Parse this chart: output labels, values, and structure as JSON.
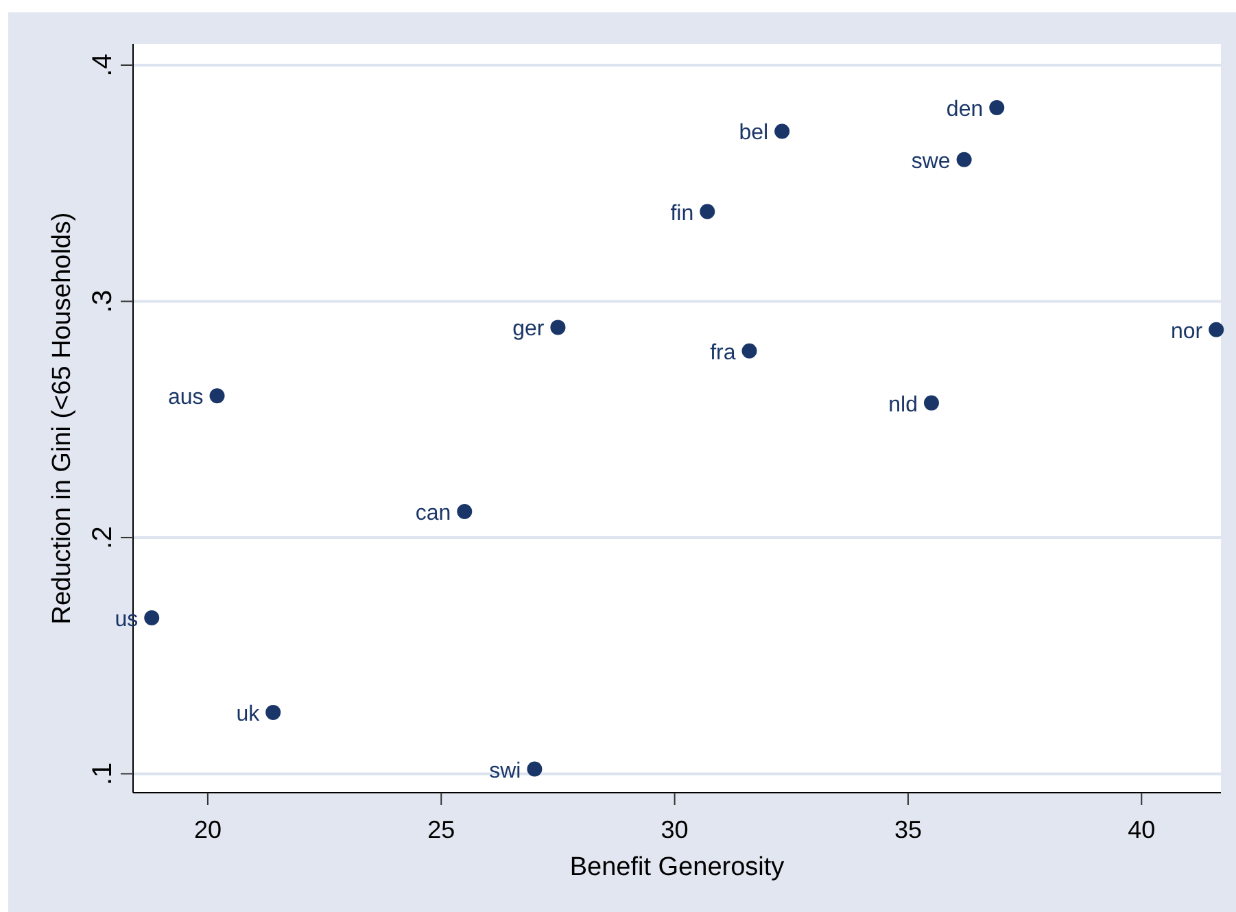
{
  "chart_data": {
    "type": "scatter",
    "xlabel": "Benefit Generosity",
    "ylabel": "Reduction in Gini (<65 Households)",
    "xlim": [
      18.4,
      41.7
    ],
    "xticks": [
      20,
      25,
      30,
      35,
      40
    ],
    "ylim": [
      0.092,
      0.409
    ],
    "yticks": [
      {
        "value": 0.1,
        "label": ".1"
      },
      {
        "value": 0.2,
        "label": ".2"
      },
      {
        "value": 0.3,
        "label": ".3"
      },
      {
        "value": 0.4,
        "label": ".4"
      }
    ],
    "grid": "y",
    "marker": "circle",
    "series": [
      {
        "color": "#1a3668",
        "x": [
          18.8,
          20.2,
          21.4,
          25.5,
          27.0,
          27.5,
          30.7,
          31.6,
          32.3,
          35.5,
          36.2,
          36.9,
          41.6
        ],
        "values": [
          0.166,
          0.26,
          0.126,
          0.211,
          0.102,
          0.289,
          0.338,
          0.279,
          0.372,
          0.257,
          0.36,
          0.382,
          0.288
        ]
      }
    ],
    "annotations": [
      {
        "text": "us",
        "x": 18.8,
        "y": 0.166
      },
      {
        "text": "aus",
        "x": 20.2,
        "y": 0.26
      },
      {
        "text": "uk",
        "x": 21.4,
        "y": 0.126
      },
      {
        "text": "can",
        "x": 25.5,
        "y": 0.211
      },
      {
        "text": "swi",
        "x": 27.0,
        "y": 0.102
      },
      {
        "text": "ger",
        "x": 27.5,
        "y": 0.289
      },
      {
        "text": "fin",
        "x": 30.7,
        "y": 0.338
      },
      {
        "text": "fra",
        "x": 31.6,
        "y": 0.279
      },
      {
        "text": "bel",
        "x": 32.3,
        "y": 0.372
      },
      {
        "text": "nld",
        "x": 35.5,
        "y": 0.257
      },
      {
        "text": "swe",
        "x": 36.2,
        "y": 0.36
      },
      {
        "text": "den",
        "x": 36.9,
        "y": 0.382
      },
      {
        "text": "nor",
        "x": 41.6,
        "y": 0.288
      }
    ]
  }
}
